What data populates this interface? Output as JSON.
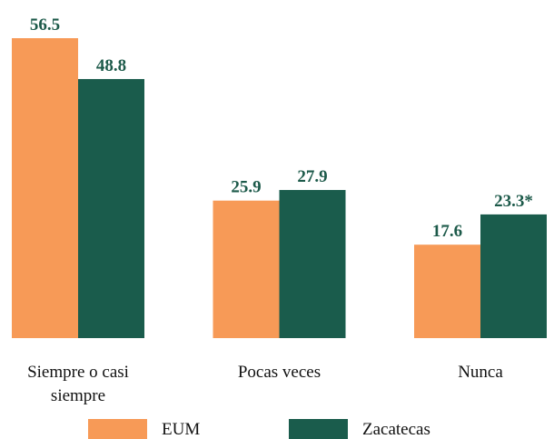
{
  "chart_data": {
    "type": "bar",
    "categories": [
      "Siempre o casi siempre",
      "Pocas veces",
      "Nunca"
    ],
    "series": [
      {
        "name": "EUM",
        "color": "#f79a57",
        "values": [
          56.5,
          25.9,
          17.6
        ]
      },
      {
        "name": "Zacatecas",
        "color": "#1a5c4c",
        "values": [
          48.8,
          27.9,
          23.3
        ],
        "value_labels": [
          "48.8",
          "27.9",
          "23.3*"
        ]
      }
    ],
    "label_color": "#1d5a4a"
  }
}
